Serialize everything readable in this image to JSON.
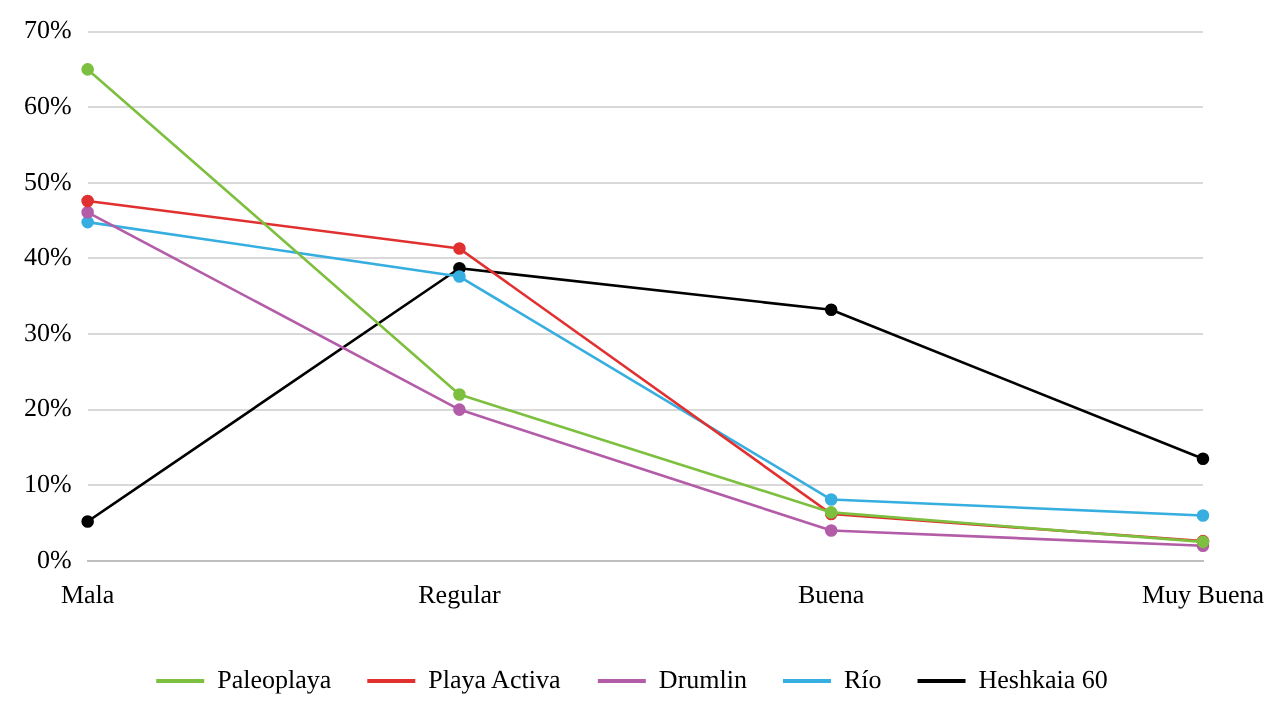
{
  "chart_data": {
    "type": "line",
    "categories": [
      "Mala",
      "Regular",
      "Buena",
      "Muy Buena"
    ],
    "series": [
      {
        "name": "Paleoplaya",
        "color": "#7dbf3f",
        "values": [
          65,
          22,
          6.4,
          2.5
        ]
      },
      {
        "name": "Playa Activa",
        "color": "#e0302f",
        "values": [
          47.6,
          41.3,
          6.2,
          2.6
        ]
      },
      {
        "name": "Drumlin",
        "color": "#b35ca8",
        "values": [
          46.1,
          20,
          4,
          2
        ]
      },
      {
        "name": "Río",
        "color": "#36aee0",
        "values": [
          44.8,
          37.6,
          8.1,
          6
        ]
      },
      {
        "name": "Heshkaia 60",
        "color": "#000000",
        "values": [
          5.2,
          38.7,
          33.2,
          13.5
        ]
      }
    ],
    "ylim": [
      0,
      70
    ],
    "yticks": [
      {
        "value": 0,
        "label": "0%"
      },
      {
        "value": 10,
        "label": "10%"
      },
      {
        "value": 20,
        "label": "20%"
      },
      {
        "value": 30,
        "label": "30%"
      },
      {
        "value": 40,
        "label": "40%"
      },
      {
        "value": 50,
        "label": "50%"
      },
      {
        "value": 60,
        "label": "60%"
      },
      {
        "value": 70,
        "label": "70%"
      }
    ],
    "grid": "y",
    "legend": "bottom",
    "marker": "circle",
    "line_style": "solid"
  }
}
